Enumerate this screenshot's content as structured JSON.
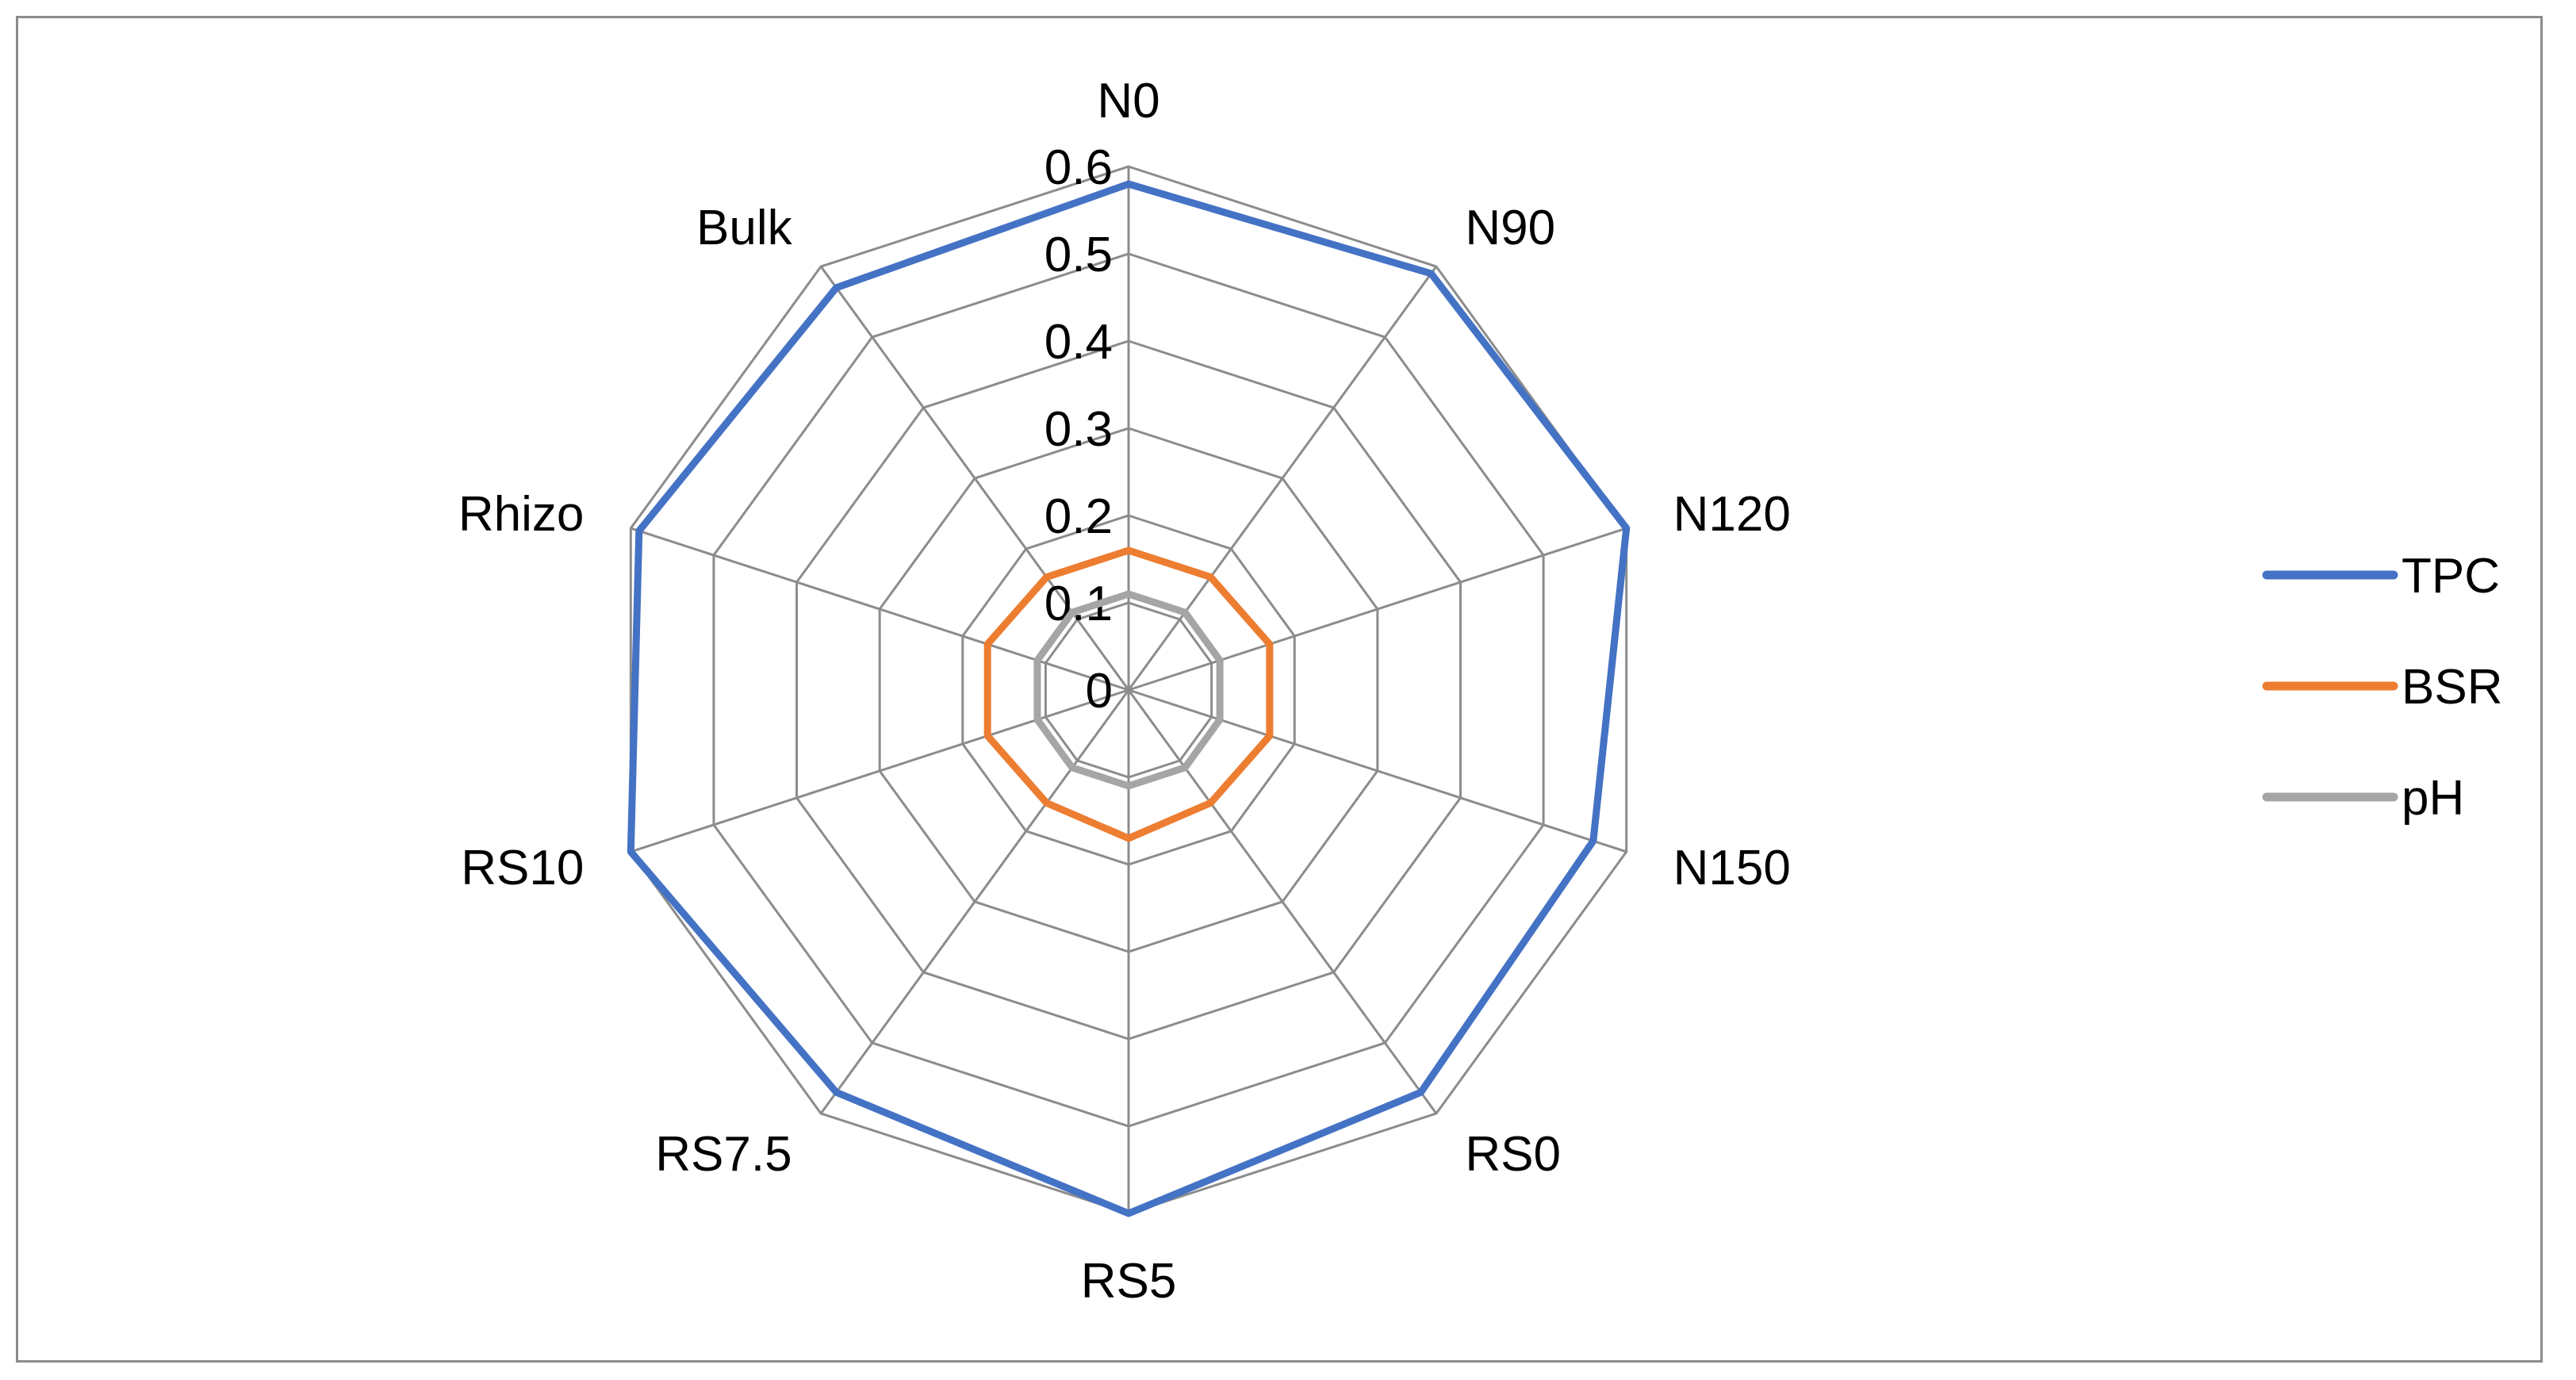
{
  "chart_data": {
    "type": "radar",
    "categories": [
      "N0",
      "N90",
      "N120",
      "N150",
      "RS0",
      "RS5",
      "RS7.5",
      "RS10",
      "Rhizo",
      "Bulk"
    ],
    "rlim": [
      0,
      0.6
    ],
    "ticks": [
      "0",
      "0.1",
      "0.2",
      "0.3",
      "0.4",
      "0.5",
      "0.6"
    ],
    "tick_values": [
      0,
      0.1,
      0.2,
      0.3,
      0.4,
      0.5,
      0.6
    ],
    "grid": true,
    "legend_position": "right",
    "series": [
      {
        "name": "TPC",
        "color": "#4472C4",
        "values": [
          0.58,
          0.59,
          0.6,
          0.56,
          0.57,
          0.6,
          0.57,
          0.6,
          0.59,
          0.57
        ]
      },
      {
        "name": "BSR",
        "color": "#ED7D31",
        "values": [
          0.16,
          0.16,
          0.17,
          0.17,
          0.16,
          0.17,
          0.16,
          0.17,
          0.17,
          0.16
        ]
      },
      {
        "name": "pH",
        "color": "#A5A5A5",
        "values": [
          0.11,
          0.11,
          0.11,
          0.11,
          0.11,
          0.11,
          0.11,
          0.11,
          0.11,
          0.11
        ]
      }
    ]
  }
}
